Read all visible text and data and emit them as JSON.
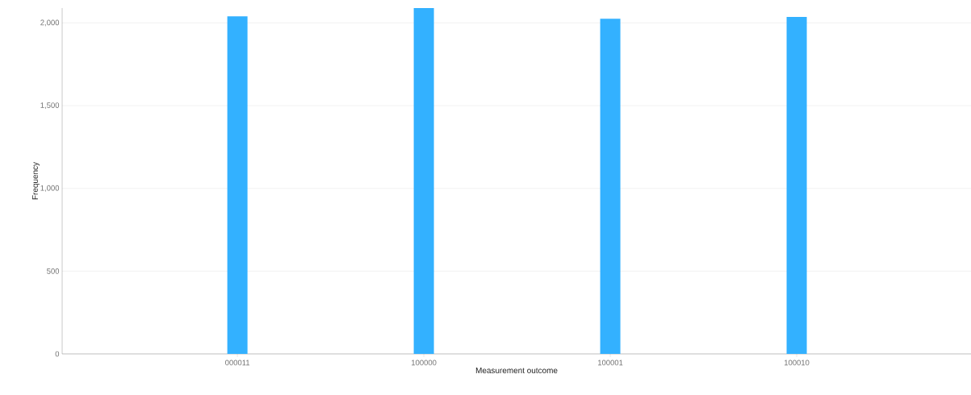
{
  "chart_data": {
    "type": "bar",
    "xlabel": "Measurement outcome",
    "ylabel": "Frequency",
    "categories": [
      "000011",
      "100000",
      "100001",
      "100010"
    ],
    "values": [
      2040,
      2090,
      2025,
      2037
    ],
    "color": "#33b1ff",
    "ylim": [
      0,
      2090
    ],
    "yticks": [
      0,
      500,
      {
        "value": 1000,
        "label": "1,000"
      },
      {
        "value": 1500,
        "label": "1,500"
      },
      {
        "value": 2000,
        "label": "2,000"
      }
    ],
    "grid": "y"
  }
}
